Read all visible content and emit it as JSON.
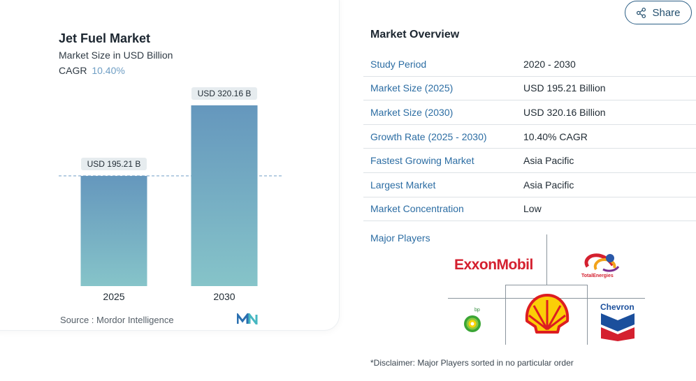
{
  "chart": {
    "title": "Jet Fuel Market",
    "subtitle": "Market Size in USD Billion",
    "cagr_label": "CAGR",
    "cagr_value": "10.40%",
    "source": "Source :  Mordor Intelligence",
    "bar_labels": [
      "USD 195.21 B",
      "USD 320.16 B"
    ]
  },
  "chart_data": {
    "type": "bar",
    "categories": [
      "2025",
      "2030"
    ],
    "values": [
      195.21,
      320.16
    ],
    "title": "Jet Fuel Market",
    "ylabel": "Market Size in USD Billion",
    "ylim": [
      0,
      330
    ],
    "grid": false,
    "reference_line_value": 195.21
  },
  "share": {
    "label": "Share",
    "icon": "share-icon"
  },
  "overview": {
    "title": "Market Overview",
    "rows": [
      {
        "label": "Study Period",
        "value": "2020 - 2030"
      },
      {
        "label": "Market Size (2025)",
        "value": "USD 195.21 Billion"
      },
      {
        "label": "Market Size (2030)",
        "value": "USD 320.16 Billion"
      },
      {
        "label": "Growth Rate (2025 - 2030)",
        "value": "10.40% CAGR"
      },
      {
        "label": "Fastest Growing Market",
        "value": "Asia Pacific"
      },
      {
        "label": "Largest Market",
        "value": "Asia Pacific"
      },
      {
        "label": "Market Concentration",
        "value": "Low"
      }
    ]
  },
  "players": {
    "label": "Major Players",
    "exxon": "ExxonMobil",
    "total": "TotalEnergies",
    "bp": "bp",
    "chevron": "Chevron",
    "shell_icon": "shell-logo"
  },
  "disclaimer": "*Disclaimer: Major Players sorted in no particular order",
  "colors": {
    "bar_top": "#6597bd",
    "bar_bottom": "#86c4c9",
    "label_bg": "#e6ecef",
    "accent_text": "#2c6da3",
    "dashed_line": "#6f9ec4"
  }
}
